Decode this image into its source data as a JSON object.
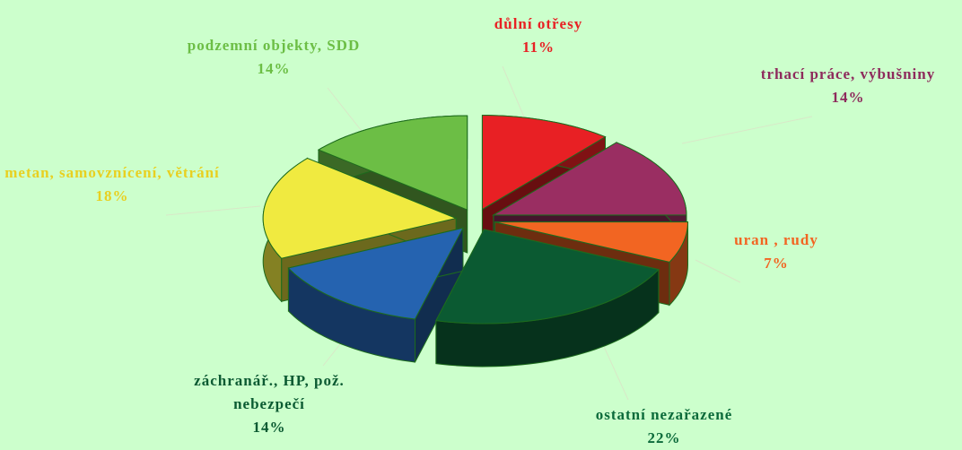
{
  "chart_data": {
    "type": "pie3d",
    "categories": [
      "důlní otřesy",
      "trhací práce, výbušniny",
      "uran , rudy",
      "ostatní nezařazené",
      "záchranář., HP, pož. nebezpečí",
      "metan, samovznícení, větrání",
      "podzemní objekty, SDD"
    ],
    "values": [
      11,
      14,
      7,
      22,
      14,
      18,
      14
    ],
    "value_labels": [
      "11%",
      "14%",
      "7%",
      "22%",
      "14%",
      "18%",
      "14%"
    ],
    "colors": [
      "#e82024",
      "#9a2e62",
      "#f26522",
      "#0b5a32",
      "#2563b0",
      "#f0ea40",
      "#6cbe45"
    ],
    "label_colors": [
      "#e82024",
      "#8e2a5c",
      "#f26522",
      "#0b6a3a",
      "#0b5a32",
      "#e8d020",
      "#6cbe45"
    ]
  }
}
